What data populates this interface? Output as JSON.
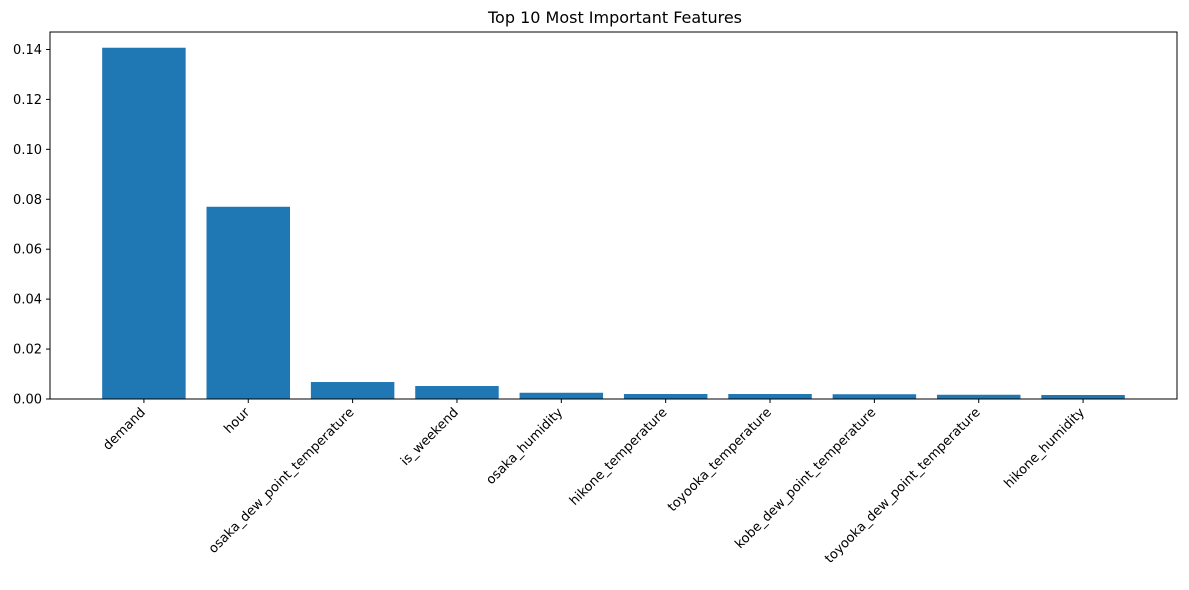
{
  "chart_data": {
    "type": "bar",
    "title": "Top 10 Most Important Features",
    "xlabel": "",
    "ylabel": "",
    "categories": [
      "demand",
      "hour",
      "osaka_dew_point_temperature",
      "is_weekend",
      "osaka_humidity",
      "hikone_temperature",
      "toyooka_temperature",
      "kobe_dew_point_temperature",
      "toyooka_dew_point_temperature",
      "hikone_humidity"
    ],
    "values": [
      0.1407,
      0.077,
      0.0068,
      0.0052,
      0.0025,
      0.002,
      0.002,
      0.0019,
      0.0017,
      0.0016
    ],
    "ylim": [
      0,
      0.147
    ],
    "yticks": [
      0.0,
      0.02,
      0.04,
      0.06,
      0.08,
      0.1,
      0.12,
      0.14
    ],
    "ytick_labels": [
      "0.00",
      "0.02",
      "0.04",
      "0.06",
      "0.08",
      "0.10",
      "0.12",
      "0.14"
    ],
    "grid": false,
    "bar_color": "#1f77b4",
    "xtick_rotation_deg": 45
  }
}
